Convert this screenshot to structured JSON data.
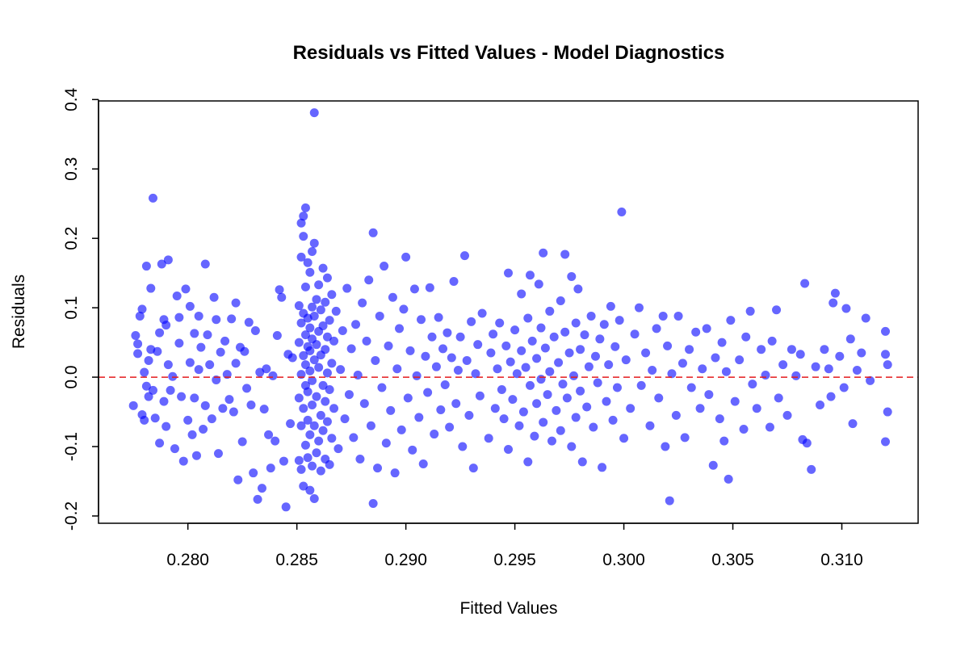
{
  "chart_data": {
    "type": "scatter",
    "title": "Residuals vs Fitted Values - Model Diagnostics",
    "xlabel": "Fitted Values",
    "ylabel": "Residuals",
    "xlim": [
      0.2759,
      0.3135
    ],
    "ylim": [
      -0.2105,
      0.398
    ],
    "xticks": [
      "0.280",
      "0.285",
      "0.290",
      "0.295",
      "0.300",
      "0.305",
      "0.310"
    ],
    "yticks": [
      "-0.2",
      "-0.1",
      "0.0",
      "0.1",
      "0.2",
      "0.3",
      "0.4"
    ],
    "grid": false,
    "reference_line": {
      "y": 0,
      "style": "dashed",
      "color": "#e41a1c"
    },
    "point_color": "#0000ff",
    "point_alpha": 0.6,
    "points": [
      [
        0.2775,
        -0.041
      ],
      [
        0.2776,
        0.06
      ],
      [
        0.2777,
        0.048
      ],
      [
        0.2777,
        0.034
      ],
      [
        0.2778,
        0.088
      ],
      [
        0.2779,
        0.098
      ],
      [
        0.2779,
        -0.054
      ],
      [
        0.278,
        -0.062
      ],
      [
        0.278,
        0.007
      ],
      [
        0.2781,
        0.16
      ],
      [
        0.2781,
        -0.013
      ],
      [
        0.2782,
        0.024
      ],
      [
        0.2782,
        -0.028
      ],
      [
        0.2783,
        0.128
      ],
      [
        0.2783,
        0.04
      ],
      [
        0.2784,
        0.258
      ],
      [
        0.2784,
        -0.019
      ],
      [
        0.2785,
        -0.059
      ],
      [
        0.2786,
        0.037
      ],
      [
        0.2787,
        0.064
      ],
      [
        0.2787,
        -0.095
      ],
      [
        0.2788,
        0.163
      ],
      [
        0.2789,
        0.083
      ],
      [
        0.2789,
        -0.035
      ],
      [
        0.279,
        0.075
      ],
      [
        0.279,
        -0.071
      ],
      [
        0.2791,
        0.169
      ],
      [
        0.2791,
        0.018
      ],
      [
        0.2792,
        -0.019
      ],
      [
        0.2793,
        0.001
      ],
      [
        0.2794,
        -0.103
      ],
      [
        0.2795,
        0.117
      ],
      [
        0.2796,
        0.086
      ],
      [
        0.2796,
        0.049
      ],
      [
        0.2797,
        -0.028
      ],
      [
        0.2798,
        -0.121
      ],
      [
        0.2799,
        0.127
      ],
      [
        0.28,
        -0.062
      ],
      [
        0.2801,
        0.102
      ],
      [
        0.2801,
        0.021
      ],
      [
        0.2802,
        -0.083
      ],
      [
        0.2803,
        0.063
      ],
      [
        0.2803,
        -0.03
      ],
      [
        0.2804,
        -0.113
      ],
      [
        0.2805,
        0.088
      ],
      [
        0.2805,
        0.011
      ],
      [
        0.2806,
        0.043
      ],
      [
        0.2807,
        -0.075
      ],
      [
        0.2808,
        0.163
      ],
      [
        0.2808,
        -0.041
      ],
      [
        0.2809,
        0.061
      ],
      [
        0.281,
        0.018
      ],
      [
        0.2811,
        -0.06
      ],
      [
        0.2812,
        0.115
      ],
      [
        0.2813,
        0.083
      ],
      [
        0.2813,
        -0.004
      ],
      [
        0.2814,
        -0.11
      ],
      [
        0.2815,
        0.036
      ],
      [
        0.2816,
        -0.045
      ],
      [
        0.2817,
        0.052
      ],
      [
        0.2818,
        0.004
      ],
      [
        0.2819,
        -0.032
      ],
      [
        0.282,
        0.084
      ],
      [
        0.2821,
        -0.05
      ],
      [
        0.2822,
        0.107
      ],
      [
        0.2822,
        0.02
      ],
      [
        0.2823,
        -0.148
      ],
      [
        0.2824,
        0.043
      ],
      [
        0.2825,
        -0.093
      ],
      [
        0.2826,
        0.037
      ],
      [
        0.2827,
        -0.016
      ],
      [
        0.2828,
        0.079
      ],
      [
        0.2829,
        -0.04
      ],
      [
        0.283,
        -0.138
      ],
      [
        0.2831,
        0.067
      ],
      [
        0.2832,
        -0.176
      ],
      [
        0.2833,
        0.007
      ],
      [
        0.2834,
        -0.16
      ],
      [
        0.2835,
        -0.046
      ],
      [
        0.2836,
        0.012
      ],
      [
        0.2837,
        -0.083
      ],
      [
        0.2838,
        -0.131
      ],
      [
        0.2839,
        0.002
      ],
      [
        0.284,
        -0.092
      ],
      [
        0.2841,
        0.06
      ],
      [
        0.2842,
        0.126
      ],
      [
        0.2843,
        0.115
      ],
      [
        0.2844,
        -0.121
      ],
      [
        0.2845,
        -0.187
      ],
      [
        0.2846,
        0.033
      ],
      [
        0.2847,
        -0.067
      ],
      [
        0.2848,
        0.028
      ],
      [
        0.2851,
        0.103
      ],
      [
        0.2851,
        -0.12
      ],
      [
        0.2851,
        0.05
      ],
      [
        0.2851,
        -0.03
      ],
      [
        0.2852,
        0.173
      ],
      [
        0.2852,
        0.222
      ],
      [
        0.2852,
        -0.133
      ],
      [
        0.2852,
        0.004
      ],
      [
        0.2852,
        0.078
      ],
      [
        0.2852,
        -0.07
      ],
      [
        0.2853,
        0.232
      ],
      [
        0.2853,
        0.203
      ],
      [
        0.2853,
        -0.157
      ],
      [
        0.2853,
        0.031
      ],
      [
        0.2853,
        -0.045
      ],
      [
        0.2853,
        0.092
      ],
      [
        0.2854,
        0.244
      ],
      [
        0.2854,
        0.13
      ],
      [
        0.2854,
        -0.098
      ],
      [
        0.2854,
        0.018
      ],
      [
        0.2854,
        -0.012
      ],
      [
        0.2854,
        0.061
      ],
      [
        0.2855,
        0.165
      ],
      [
        0.2855,
        -0.116
      ],
      [
        0.2855,
        0.044
      ],
      [
        0.2855,
        -0.062
      ],
      [
        0.2855,
        0.085
      ],
      [
        0.2855,
        -0.021
      ],
      [
        0.2856,
        0.151
      ],
      [
        0.2856,
        -0.163
      ],
      [
        0.2856,
        0.071
      ],
      [
        0.2856,
        -0.083
      ],
      [
        0.2856,
        0.009
      ],
      [
        0.2856,
        0.038
      ],
      [
        0.2857,
        0.181
      ],
      [
        0.2857,
        -0.128
      ],
      [
        0.2857,
        0.101
      ],
      [
        0.2857,
        -0.04
      ],
      [
        0.2857,
        0.055
      ],
      [
        0.2857,
        -0.005
      ],
      [
        0.2858,
        0.381
      ],
      [
        0.2858,
        0.193
      ],
      [
        0.2858,
        -0.175
      ],
      [
        0.2858,
        0.025
      ],
      [
        0.2858,
        -0.07
      ],
      [
        0.2858,
        0.088
      ],
      [
        0.2859,
        0.112
      ],
      [
        0.2859,
        -0.109
      ],
      [
        0.2859,
        0.047
      ],
      [
        0.2859,
        -0.028
      ],
      [
        0.286,
        0.133
      ],
      [
        0.286,
        -0.092
      ],
      [
        0.286,
        0.014
      ],
      [
        0.286,
        0.066
      ],
      [
        0.2861,
        -0.055
      ],
      [
        0.2861,
        0.097
      ],
      [
        0.2861,
        -0.135
      ],
      [
        0.2861,
        0.032
      ],
      [
        0.2862,
        0.157
      ],
      [
        0.2862,
        -0.012
      ],
      [
        0.2862,
        -0.077
      ],
      [
        0.2862,
        0.074
      ],
      [
        0.2863,
        0.04
      ],
      [
        0.2863,
        -0.118
      ],
      [
        0.2863,
        0.108
      ],
      [
        0.2863,
        -0.035
      ],
      [
        0.2864,
        0.143
      ],
      [
        0.2864,
        0.006
      ],
      [
        0.2864,
        -0.064
      ],
      [
        0.2864,
        0.058
      ],
      [
        0.2865,
        -0.126
      ],
      [
        0.2865,
        0.082
      ],
      [
        0.2865,
        -0.018
      ],
      [
        0.2866,
        0.02
      ],
      [
        0.2866,
        -0.088
      ],
      [
        0.2866,
        0.119
      ],
      [
        0.2867,
        -0.045
      ],
      [
        0.2867,
        0.052
      ],
      [
        0.2868,
        0.095
      ],
      [
        0.2869,
        -0.103
      ],
      [
        0.287,
        0.011
      ],
      [
        0.2871,
        0.067
      ],
      [
        0.2872,
        -0.06
      ],
      [
        0.2873,
        0.128
      ],
      [
        0.2874,
        -0.025
      ],
      [
        0.2875,
        0.041
      ],
      [
        0.2876,
        -0.087
      ],
      [
        0.2877,
        0.076
      ],
      [
        0.2878,
        0.003
      ],
      [
        0.2879,
        -0.118
      ],
      [
        0.288,
        0.107
      ],
      [
        0.2881,
        -0.038
      ],
      [
        0.2882,
        0.052
      ],
      [
        0.2883,
        0.14
      ],
      [
        0.2884,
        -0.07
      ],
      [
        0.2885,
        0.208
      ],
      [
        0.2885,
        -0.182
      ],
      [
        0.2886,
        0.024
      ],
      [
        0.2887,
        -0.131
      ],
      [
        0.2888,
        0.088
      ],
      [
        0.2889,
        -0.015
      ],
      [
        0.289,
        0.16
      ],
      [
        0.2891,
        -0.095
      ],
      [
        0.2892,
        0.045
      ],
      [
        0.2893,
        -0.048
      ],
      [
        0.2894,
        0.115
      ],
      [
        0.2895,
        -0.138
      ],
      [
        0.2896,
        0.012
      ],
      [
        0.2897,
        0.07
      ],
      [
        0.2898,
        -0.076
      ],
      [
        0.2899,
        0.098
      ],
      [
        0.29,
        0.173
      ],
      [
        0.2901,
        -0.03
      ],
      [
        0.2902,
        0.038
      ],
      [
        0.2903,
        -0.105
      ],
      [
        0.2904,
        0.127
      ],
      [
        0.2905,
        0.002
      ],
      [
        0.2906,
        -0.058
      ],
      [
        0.2907,
        0.083
      ],
      [
        0.2908,
        -0.125
      ],
      [
        0.2909,
        0.03
      ],
      [
        0.291,
        -0.022
      ],
      [
        0.2911,
        0.129
      ],
      [
        0.2912,
        0.058
      ],
      [
        0.2913,
        -0.082
      ],
      [
        0.2914,
        0.015
      ],
      [
        0.2915,
        0.086
      ],
      [
        0.2916,
        -0.047
      ],
      [
        0.2917,
        0.041
      ],
      [
        0.2918,
        -0.011
      ],
      [
        0.2919,
        0.064
      ],
      [
        0.292,
        -0.072
      ],
      [
        0.2921,
        0.028
      ],
      [
        0.2922,
        0.138
      ],
      [
        0.2923,
        -0.038
      ],
      [
        0.2924,
        0.01
      ],
      [
        0.2925,
        0.058
      ],
      [
        0.2926,
        -0.1
      ],
      [
        0.2927,
        0.175
      ],
      [
        0.2928,
        0.024
      ],
      [
        0.2929,
        -0.055
      ],
      [
        0.293,
        0.08
      ],
      [
        0.2931,
        -0.131
      ],
      [
        0.2932,
        0.005
      ],
      [
        0.2933,
        0.047
      ],
      [
        0.2934,
        -0.027
      ],
      [
        0.2935,
        0.092
      ],
      [
        0.2938,
        -0.088
      ],
      [
        0.2939,
        0.035
      ],
      [
        0.294,
        0.062
      ],
      [
        0.2941,
        -0.045
      ],
      [
        0.2942,
        0.012
      ],
      [
        0.2943,
        0.078
      ],
      [
        0.2944,
        -0.018
      ],
      [
        0.2945,
        -0.06
      ],
      [
        0.2946,
        0.045
      ],
      [
        0.2947,
        0.15
      ],
      [
        0.2947,
        -0.104
      ],
      [
        0.2948,
        0.022
      ],
      [
        0.2949,
        -0.032
      ],
      [
        0.295,
        0.068
      ],
      [
        0.2951,
        0.005
      ],
      [
        0.2952,
        -0.07
      ],
      [
        0.2953,
        0.12
      ],
      [
        0.2953,
        0.038
      ],
      [
        0.2954,
        -0.05
      ],
      [
        0.2955,
        0.014
      ],
      [
        0.2956,
        -0.122
      ],
      [
        0.2956,
        0.085
      ],
      [
        0.2957,
        0.147
      ],
      [
        0.2957,
        -0.012
      ],
      [
        0.2958,
        0.052
      ],
      [
        0.2959,
        -0.085
      ],
      [
        0.296,
        0.027
      ],
      [
        0.296,
        -0.038
      ],
      [
        0.2961,
        0.134
      ],
      [
        0.2962,
        0.071
      ],
      [
        0.2962,
        -0.003
      ],
      [
        0.2963,
        0.179
      ],
      [
        0.2963,
        -0.065
      ],
      [
        0.2964,
        0.042
      ],
      [
        0.2965,
        -0.025
      ],
      [
        0.2966,
        0.095
      ],
      [
        0.2966,
        0.008
      ],
      [
        0.2967,
        -0.092
      ],
      [
        0.2968,
        0.058
      ],
      [
        0.2969,
        -0.048
      ],
      [
        0.297,
        0.021
      ],
      [
        0.2971,
        0.11
      ],
      [
        0.2971,
        -0.077
      ],
      [
        0.2972,
        -0.01
      ],
      [
        0.2973,
        0.177
      ],
      [
        0.2973,
        0.065
      ],
      [
        0.2974,
        -0.03
      ],
      [
        0.2975,
        0.035
      ],
      [
        0.2976,
        -0.1
      ],
      [
        0.2976,
        0.145
      ],
      [
        0.2977,
        0.002
      ],
      [
        0.2978,
        0.078
      ],
      [
        0.2978,
        -0.058
      ],
      [
        0.2979,
        0.127
      ],
      [
        0.298,
        0.04
      ],
      [
        0.298,
        -0.02
      ],
      [
        0.2981,
        -0.122
      ],
      [
        0.2982,
        0.061
      ],
      [
        0.2983,
        -0.043
      ],
      [
        0.2984,
        0.015
      ],
      [
        0.2985,
        0.088
      ],
      [
        0.2986,
        -0.072
      ],
      [
        0.2987,
        0.03
      ],
      [
        0.2988,
        -0.008
      ],
      [
        0.2989,
        0.055
      ],
      [
        0.299,
        -0.13
      ],
      [
        0.2991,
        0.076
      ],
      [
        0.2992,
        -0.035
      ],
      [
        0.2993,
        0.018
      ],
      [
        0.2994,
        0.102
      ],
      [
        0.2995,
        -0.062
      ],
      [
        0.2996,
        0.044
      ],
      [
        0.2997,
        -0.015
      ],
      [
        0.2998,
        0.082
      ],
      [
        0.2999,
        0.238
      ],
      [
        0.3,
        -0.088
      ],
      [
        0.3001,
        0.025
      ],
      [
        0.3003,
        -0.045
      ],
      [
        0.3005,
        0.062
      ],
      [
        0.3007,
        0.1
      ],
      [
        0.3008,
        -0.012
      ],
      [
        0.301,
        0.035
      ],
      [
        0.3012,
        -0.07
      ],
      [
        0.3013,
        0.01
      ],
      [
        0.3015,
        0.07
      ],
      [
        0.3016,
        -0.03
      ],
      [
        0.3018,
        0.088
      ],
      [
        0.3019,
        -0.1
      ],
      [
        0.302,
        0.045
      ],
      [
        0.3021,
        -0.178
      ],
      [
        0.3022,
        0.005
      ],
      [
        0.3024,
        -0.055
      ],
      [
        0.3025,
        0.088
      ],
      [
        0.3027,
        0.02
      ],
      [
        0.3028,
        -0.087
      ],
      [
        0.303,
        0.04
      ],
      [
        0.3031,
        -0.015
      ],
      [
        0.3033,
        0.065
      ],
      [
        0.3035,
        -0.045
      ],
      [
        0.3036,
        0.012
      ],
      [
        0.3038,
        0.07
      ],
      [
        0.3039,
        -0.025
      ],
      [
        0.3041,
        -0.127
      ],
      [
        0.3042,
        0.028
      ],
      [
        0.3044,
        -0.06
      ],
      [
        0.3045,
        0.05
      ],
      [
        0.3046,
        -0.092
      ],
      [
        0.3047,
        0.008
      ],
      [
        0.3048,
        -0.147
      ],
      [
        0.3049,
        0.082
      ],
      [
        0.3051,
        -0.035
      ],
      [
        0.3053,
        0.025
      ],
      [
        0.3055,
        -0.075
      ],
      [
        0.3056,
        0.058
      ],
      [
        0.3058,
        0.095
      ],
      [
        0.3059,
        -0.01
      ],
      [
        0.3061,
        -0.045
      ],
      [
        0.3063,
        0.04
      ],
      [
        0.3065,
        0.003
      ],
      [
        0.3067,
        -0.072
      ],
      [
        0.3068,
        0.052
      ],
      [
        0.307,
        0.097
      ],
      [
        0.3071,
        -0.03
      ],
      [
        0.3073,
        0.018
      ],
      [
        0.3075,
        -0.055
      ],
      [
        0.3077,
        0.04
      ],
      [
        0.3079,
        0.002
      ],
      [
        0.3081,
        0.033
      ],
      [
        0.3082,
        -0.09
      ],
      [
        0.3083,
        0.135
      ],
      [
        0.3084,
        -0.095
      ],
      [
        0.3086,
        -0.133
      ],
      [
        0.3088,
        0.015
      ],
      [
        0.309,
        -0.04
      ],
      [
        0.3092,
        0.04
      ],
      [
        0.3094,
        0.012
      ],
      [
        0.3095,
        -0.028
      ],
      [
        0.3096,
        0.107
      ],
      [
        0.3097,
        0.121
      ],
      [
        0.3099,
        0.03
      ],
      [
        0.3101,
        -0.015
      ],
      [
        0.3102,
        0.099
      ],
      [
        0.3104,
        0.055
      ],
      [
        0.3105,
        -0.067
      ],
      [
        0.3107,
        0.01
      ],
      [
        0.3109,
        0.035
      ],
      [
        0.3111,
        0.085
      ],
      [
        0.3113,
        -0.005
      ],
      [
        0.312,
        0.066
      ],
      [
        0.312,
        -0.093
      ],
      [
        0.312,
        0.033
      ],
      [
        0.3121,
        -0.05
      ],
      [
        0.3121,
        0.018
      ]
    ]
  }
}
